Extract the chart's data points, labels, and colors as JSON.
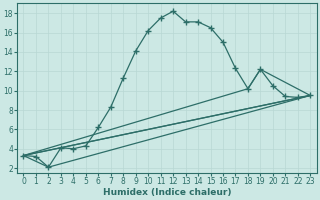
{
  "xlabel": "Humidex (Indice chaleur)",
  "ylabel": "",
  "xlim": [
    -0.5,
    23.5
  ],
  "ylim": [
    1.5,
    19
  ],
  "xticks": [
    0,
    1,
    2,
    3,
    4,
    5,
    6,
    7,
    8,
    9,
    10,
    11,
    12,
    13,
    14,
    15,
    16,
    17,
    18,
    19,
    20,
    21,
    22,
    23
  ],
  "yticks": [
    2,
    4,
    6,
    8,
    10,
    12,
    14,
    16,
    18
  ],
  "bg_color": "#cce8e4",
  "line_color": "#2d6e68",
  "grid_color": "#b8d8d4",
  "main_line": {
    "x": [
      0,
      1,
      2,
      3,
      4,
      5,
      6,
      7,
      8,
      9,
      10,
      11,
      12,
      13,
      14,
      15,
      16,
      17,
      18,
      19,
      20,
      21,
      22,
      23
    ],
    "y": [
      3.3,
      3.2,
      2.1,
      4.1,
      4.0,
      4.3,
      6.2,
      8.3,
      11.3,
      14.1,
      16.2,
      17.5,
      18.2,
      17.1,
      17.1,
      16.5,
      15.0,
      12.3,
      10.2,
      12.2,
      10.5,
      9.4,
      9.3,
      9.5
    ]
  },
  "straight_lines": [
    {
      "x": [
        0,
        23
      ],
      "y": [
        3.3,
        9.5
      ]
    },
    {
      "x": [
        0,
        23
      ],
      "y": [
        3.3,
        9.5
      ]
    },
    {
      "x": [
        0,
        18,
        19,
        23
      ],
      "y": [
        3.3,
        10.2,
        12.2,
        9.5
      ]
    },
    {
      "x": [
        0,
        2,
        23
      ],
      "y": [
        3.3,
        2.1,
        9.5
      ]
    }
  ]
}
